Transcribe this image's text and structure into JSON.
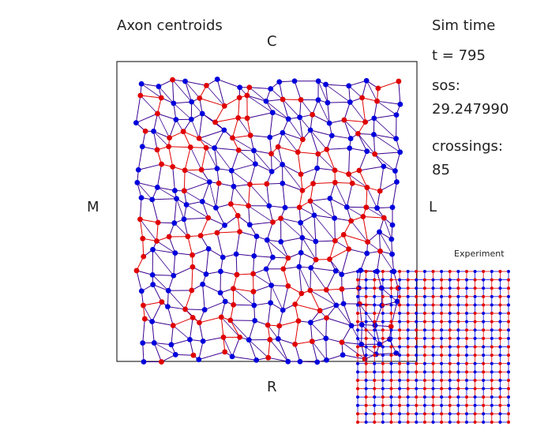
{
  "title": "Axon centroids",
  "labels": {
    "top": "C",
    "bottom": "R",
    "left": "M",
    "right": "L"
  },
  "info": {
    "sim_time_label": "Sim time",
    "time_text": "t =  795",
    "sos_label": "sos:",
    "sos_value": "29.247990",
    "crossings_label": "crossings:",
    "crossings_value": "85"
  },
  "inset": {
    "title": "Experiment",
    "rows": 19,
    "cols": 19
  },
  "colors": {
    "red": "#e00000",
    "blue": "#0000dd",
    "edge": "#3a0090",
    "frame": "#000000"
  },
  "chart_data": {
    "type": "scatter",
    "title": "Axon centroids",
    "series": [
      {
        "values": "red neurons (irregular lattice)"
      },
      {
        "values": "blue neurons (irregular lattice)"
      }
    ]
  }
}
